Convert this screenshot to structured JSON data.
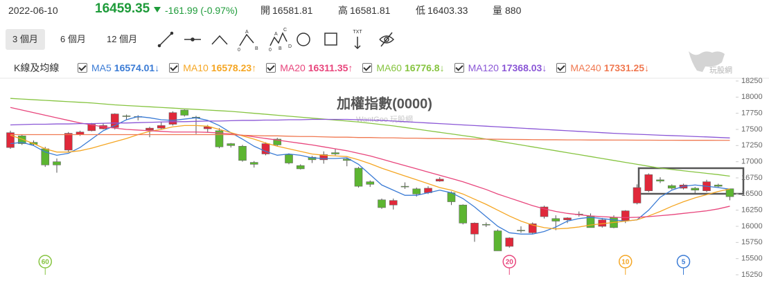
{
  "header": {
    "date": "2022-06-10",
    "change": "-161.99 (-0.97%)",
    "open_label": "開",
    "high_label": "高",
    "low_label": "低",
    "volume_label": "量",
    "volume": 880,
    "price_color": "#1e9b3a"
  },
  "toolbar": {
    "ranges": [
      "3 個月",
      "6 個月",
      "12 個月"
    ],
    "text_tool": "TXT",
    "wave_icon_1": [
      "A",
      "0",
      "B"
    ],
    "wave_icon_2": [
      "C",
      "A",
      "0",
      "B",
      "D"
    ]
  },
  "brand": "玩股網",
  "legend_title": "K線及均線",
  "chart_data": {
    "type": "candlestick",
    "title": "加權指數(0000)",
    "watermark": "WantGoo 玩股網",
    "up_color": "#e0283a",
    "down_color": "#5cb531",
    "ylim": [
      15250,
      18250
    ],
    "yticks": [
      15250,
      15500,
      15750,
      16000,
      16250,
      16500,
      16750,
      17000,
      17250,
      17500,
      17750,
      18000,
      18250
    ],
    "grid": false,
    "open": [
      17220,
      17400,
      17300,
      17200,
      17000,
      17180,
      17420,
      17480,
      17510,
      17530,
      17710,
      17700,
      17490,
      17520,
      17580,
      17800,
      17690,
      17510,
      17480,
      17280,
      17240,
      16990,
      17120,
      17350,
      17110,
      16940,
      17070,
      17030,
      17140,
      17040,
      16900,
      16690,
      16410,
      16330,
      16620,
      16580,
      16520,
      16700,
      16520,
      16330,
      15880,
      16030,
      15930,
      15690,
      15940,
      15900,
      16150,
      16120,
      16100,
      16190,
      16160,
      16000,
      16140,
      16090,
      16360,
      16550,
      16720,
      16630,
      16590,
      16590,
      16550,
      16640,
      16581.81
    ],
    "high": [
      17480,
      17420,
      17330,
      17230,
      17050,
      17460,
      17480,
      17600,
      17600,
      17750,
      17730,
      17720,
      17540,
      17620,
      17780,
      17810,
      17710,
      17570,
      17520,
      17290,
      17260,
      17010,
      17300,
      17370,
      17130,
      16960,
      17090,
      17160,
      17200,
      17060,
      16920,
      16710,
      16430,
      16430,
      16680,
      16600,
      16620,
      16760,
      16540,
      16340,
      16060,
      16060,
      15950,
      15830,
      16000,
      16060,
      16320,
      16170,
      16140,
      16230,
      16200,
      16130,
      16170,
      16250,
      16650,
      16820,
      16760,
      16650,
      16660,
      16610,
      16720,
      16660,
      16581.81
    ],
    "low": [
      17200,
      17260,
      17250,
      16920,
      16830,
      17150,
      17400,
      17470,
      17500,
      17500,
      17650,
      17640,
      17380,
      17500,
      17560,
      17700,
      17430,
      17450,
      17210,
      17220,
      17000,
      16910,
      17100,
      17240,
      16960,
      16880,
      16980,
      16970,
      17100,
      16930,
      16600,
      16610,
      16270,
      16260,
      16580,
      16460,
      16500,
      16690,
      16330,
      16030,
      15760,
      15990,
      15620,
      15670,
      15900,
      15880,
      16120,
      15940,
      16050,
      16150,
      15980,
      15980,
      15970,
      16050,
      16340,
      16530,
      16670,
      16570,
      16570,
      16510,
      16530,
      16600,
      16403.33
    ],
    "close": [
      17450,
      17280,
      17270,
      16950,
      16950,
      17440,
      17460,
      17580,
      17560,
      17740,
      17700,
      17690,
      17520,
      17560,
      17760,
      17720,
      17680,
      17540,
      17230,
      17250,
      17020,
      16960,
      17280,
      17260,
      16980,
      16890,
      17030,
      17110,
      17120,
      17020,
      16620,
      16650,
      16290,
      16400,
      16610,
      16500,
      16590,
      16730,
      16380,
      16050,
      16050,
      16020,
      15620,
      15820,
      15930,
      16040,
      16300,
      16080,
      16130,
      16180,
      15980,
      16100,
      15980,
      16240,
      16600,
      16800,
      16700,
      16590,
      16640,
      16560,
      16690,
      16620,
      16459.35
    ],
    "series": [
      {
        "name": "MA5",
        "color": "#3a7bd5",
        "trend": "↓",
        "values": [
          17280,
          17300,
          17250,
          17150,
          17100,
          17130,
          17220,
          17350,
          17480,
          17560,
          17650,
          17700,
          17680,
          17650,
          17640,
          17660,
          17680,
          17640,
          17560,
          17450,
          17350,
          17240,
          17160,
          17100,
          17120,
          17100,
          17060,
          17050,
          17050,
          17060,
          16960,
          16800,
          16640,
          16560,
          16480,
          16480,
          16520,
          16560,
          16520,
          16430,
          16300,
          16150,
          16000,
          15900,
          15880,
          15880,
          15920,
          15990,
          16080,
          16120,
          16140,
          16120,
          16100,
          16080,
          16100,
          16250,
          16450,
          16560,
          16620,
          16640,
          16620,
          16600,
          16574.01
        ]
      },
      {
        "name": "MA10",
        "color": "#f5a623",
        "trend": "↑",
        "values": [
          17410,
          17350,
          17280,
          17200,
          17150,
          17150,
          17170,
          17210,
          17260,
          17310,
          17360,
          17420,
          17470,
          17500,
          17540,
          17560,
          17560,
          17550,
          17500,
          17450,
          17400,
          17350,
          17290,
          17240,
          17200,
          17160,
          17120,
          17100,
          17090,
          17080,
          17030,
          16970,
          16900,
          16840,
          16780,
          16720,
          16660,
          16600,
          16560,
          16500,
          16420,
          16340,
          16250,
          16160,
          16080,
          16020,
          15980,
          15960,
          15970,
          15990,
          16020,
          16040,
          16060,
          16080,
          16100,
          16160,
          16230,
          16310,
          16380,
          16440,
          16490,
          16540,
          16578.23
        ]
      },
      {
        "name": "MA20",
        "color": "#e8457c",
        "trend": "↑",
        "values": [
          17840,
          17800,
          17760,
          17720,
          17680,
          17640,
          17600,
          17570,
          17540,
          17520,
          17500,
          17490,
          17480,
          17470,
          17460,
          17460,
          17460,
          17455,
          17445,
          17430,
          17410,
          17385,
          17360,
          17335,
          17310,
          17285,
          17260,
          17230,
          17200,
          17170,
          17130,
          17090,
          17040,
          16990,
          16940,
          16890,
          16840,
          16790,
          16740,
          16690,
          16630,
          16570,
          16500,
          16440,
          16380,
          16320,
          16270,
          16230,
          16200,
          16180,
          16160,
          16150,
          16140,
          16135,
          16140,
          16150,
          16165,
          16180,
          16200,
          16220,
          16240,
          16270,
          16311.35
        ]
      },
      {
        "name": "MA60",
        "color": "#86c440",
        "trend": "↓",
        "values": [
          17980,
          17970,
          17960,
          17950,
          17940,
          17930,
          17920,
          17910,
          17895,
          17880,
          17870,
          17860,
          17850,
          17840,
          17830,
          17820,
          17810,
          17800,
          17790,
          17780,
          17765,
          17750,
          17735,
          17720,
          17705,
          17690,
          17675,
          17660,
          17645,
          17630,
          17615,
          17595,
          17575,
          17555,
          17530,
          17505,
          17480,
          17455,
          17430,
          17405,
          17380,
          17350,
          17320,
          17290,
          17260,
          17230,
          17200,
          17170,
          17140,
          17110,
          17080,
          17050,
          17020,
          16990,
          16960,
          16930,
          16900,
          16880,
          16860,
          16840,
          16820,
          16800,
          16776.8
        ]
      },
      {
        "name": "MA120",
        "color": "#8a56d6",
        "trend": "↓",
        "values": [
          17570,
          17575,
          17580,
          17580,
          17585,
          17585,
          17590,
          17590,
          17595,
          17600,
          17600,
          17605,
          17610,
          17615,
          17620,
          17620,
          17625,
          17630,
          17630,
          17635,
          17640,
          17640,
          17645,
          17645,
          17650,
          17650,
          17655,
          17655,
          17655,
          17655,
          17650,
          17645,
          17640,
          17630,
          17620,
          17610,
          17600,
          17590,
          17580,
          17570,
          17560,
          17550,
          17540,
          17530,
          17520,
          17510,
          17500,
          17490,
          17480,
          17470,
          17460,
          17450,
          17440,
          17432,
          17425,
          17418,
          17410,
          17404,
          17398,
          17390,
          17384,
          17376,
          17368.03
        ]
      },
      {
        "name": "MA240",
        "color": "#f07850",
        "trend": "↓",
        "values": [
          17420,
          17420,
          17420,
          17420,
          17420,
          17420,
          17420,
          17420,
          17420,
          17420,
          17420,
          17420,
          17420,
          17420,
          17420,
          17420,
          17420,
          17420,
          17420,
          17420,
          17410,
          17405,
          17400,
          17400,
          17395,
          17390,
          17390,
          17385,
          17380,
          17380,
          17375,
          17375,
          17370,
          17370,
          17365,
          17365,
          17360,
          17360,
          17355,
          17355,
          17350,
          17350,
          17348,
          17346,
          17344,
          17342,
          17340,
          17340,
          17338,
          17338,
          17336,
          17336,
          17335,
          17335,
          17334,
          17334,
          17333,
          17333,
          17332,
          17332,
          17332,
          17331,
          17331.25
        ]
      }
    ],
    "markers": [
      {
        "label": 60,
        "at": 3,
        "series": 3
      },
      {
        "label": 20,
        "at": 43,
        "series": 2
      },
      {
        "label": 10,
        "at": 53,
        "series": 1
      },
      {
        "label": 5,
        "at": 58,
        "series": 0
      }
    ]
  }
}
